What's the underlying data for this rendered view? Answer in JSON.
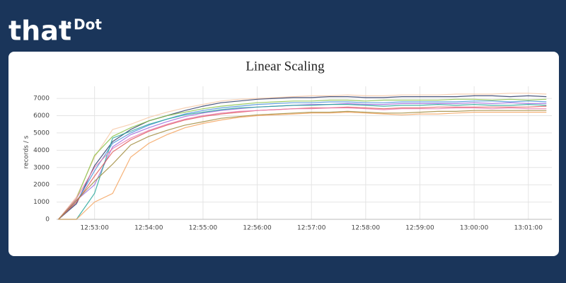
{
  "header": {
    "logo_main": "that",
    "logo_sup": "Dot"
  },
  "chart_data": {
    "type": "line",
    "title": "Linear Scaling",
    "y_label": "records / s",
    "x": [
      "12:52:20",
      "12:52:40",
      "12:53:00",
      "12:53:20",
      "12:53:40",
      "12:54:00",
      "12:54:20",
      "12:54:40",
      "12:55:00",
      "12:55:20",
      "12:55:40",
      "12:56:00",
      "12:56:20",
      "12:56:40",
      "12:57:00",
      "12:57:20",
      "12:57:40",
      "12:58:00",
      "12:58:20",
      "12:58:40",
      "12:59:00",
      "12:59:20",
      "12:59:40",
      "13:00:00",
      "13:00:20",
      "13:00:40",
      "13:01:00",
      "13:01:20"
    ],
    "xlim": [
      "12:52:18",
      "13:01:26"
    ],
    "xticks": [
      "12:53:00",
      "12:54:00",
      "12:55:00",
      "12:56:00",
      "12:57:00",
      "12:58:00",
      "12:59:00",
      "13:00:00",
      "13:01:00"
    ],
    "ylim": [
      0,
      7700
    ],
    "yticks": [
      0,
      1000,
      2000,
      3000,
      4000,
      5000,
      6000,
      7000
    ],
    "grid": true,
    "series": [
      {
        "color": "#f7c9a8",
        "values": [
          0,
          1300,
          3600,
          5200,
          5500,
          5900,
          6200,
          6450,
          6650,
          6850,
          6950,
          7000,
          7050,
          7100,
          7150,
          7150,
          7200,
          7150,
          7150,
          7200,
          7200,
          7200,
          7250,
          7250,
          7250,
          7300,
          7300,
          7250
        ]
      },
      {
        "color": "#2b3a67",
        "values": [
          0,
          900,
          3100,
          4500,
          5200,
          5700,
          6000,
          6300,
          6550,
          6750,
          6850,
          6950,
          7000,
          7050,
          7050,
          7100,
          7100,
          7050,
          7050,
          7100,
          7100,
          7100,
          7100,
          7150,
          7150,
          7100,
          7150,
          7100
        ]
      },
      {
        "color": "#8bc34a",
        "values": [
          0,
          1200,
          3700,
          4800,
          5300,
          5700,
          6000,
          6200,
          6400,
          6550,
          6650,
          6750,
          6800,
          6850,
          6850,
          6900,
          6900,
          6850,
          6900,
          6900,
          6900,
          6900,
          6950,
          6950,
          6900,
          6950,
          6900,
          6950
        ]
      },
      {
        "color": "#4a90d9",
        "values": [
          0,
          1000,
          2800,
          4400,
          5000,
          5450,
          5800,
          6100,
          6300,
          6450,
          6550,
          6650,
          6700,
          6750,
          6750,
          6800,
          6800,
          6750,
          6750,
          6800,
          6800,
          6800,
          6800,
          6850,
          6850,
          6800,
          6850,
          6800
        ]
      },
      {
        "color": "#9c6ade",
        "values": [
          0,
          1100,
          2000,
          4200,
          4900,
          5300,
          5650,
          5950,
          6150,
          6300,
          6400,
          6500,
          6550,
          6600,
          6650,
          6650,
          6700,
          6650,
          6650,
          6700,
          6700,
          6700,
          6700,
          6750,
          6700,
          6750,
          6700,
          6700
        ]
      },
      {
        "color": "#26a69a",
        "values": [
          0,
          0,
          1500,
          4700,
          5100,
          5500,
          5800,
          6050,
          6200,
          6350,
          6450,
          6500,
          6550,
          6600,
          6600,
          6650,
          6650,
          6600,
          6550,
          6600,
          6600,
          6650,
          6600,
          6650,
          6600,
          6600,
          6650,
          6600
        ]
      },
      {
        "color": "#e05a5a",
        "values": [
          0,
          1000,
          2500,
          3900,
          4600,
          5100,
          5450,
          5750,
          5950,
          6100,
          6200,
          6300,
          6350,
          6400,
          6450,
          6450,
          6500,
          6450,
          6400,
          6450,
          6450,
          6500,
          6500,
          6500,
          6500,
          6500,
          6500,
          6550
        ]
      },
      {
        "color": "#e87ab0",
        "values": [
          0,
          1200,
          3000,
          4100,
          4700,
          5150,
          5500,
          5800,
          6000,
          6150,
          6250,
          6300,
          6350,
          6400,
          6400,
          6450,
          6450,
          6400,
          6350,
          6400,
          6400,
          6400,
          6450,
          6450,
          6400,
          6450,
          6400,
          6400
        ]
      },
      {
        "color": "#a08b3c",
        "values": [
          0,
          1100,
          2200,
          3200,
          4300,
          4800,
          5150,
          5450,
          5650,
          5850,
          5950,
          6050,
          6100,
          6150,
          6200,
          6200,
          6250,
          6200,
          6150,
          6150,
          6200,
          6250,
          6250,
          6300,
          6300,
          6300,
          6300,
          6300
        ]
      },
      {
        "color": "#f4a460",
        "values": [
          0,
          0,
          1000,
          1500,
          3600,
          4400,
          4900,
          5300,
          5550,
          5750,
          5900,
          6000,
          6050,
          6100,
          6150,
          6150,
          6200,
          6150,
          6100,
          6050,
          6100,
          6100,
          6150,
          6200,
          6200,
          6200,
          6200,
          6200
        ]
      }
    ]
  }
}
